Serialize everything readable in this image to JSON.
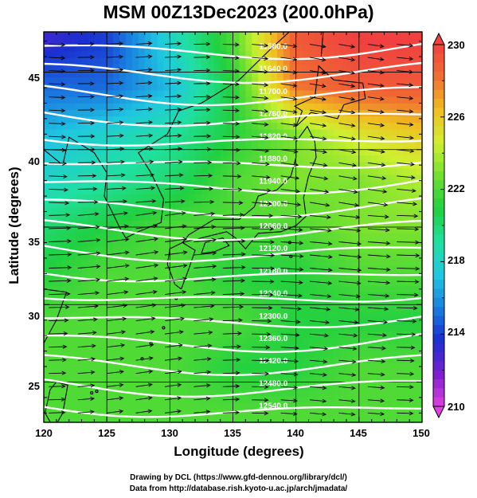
{
  "title": "MSM 00Z13Dec2023 (200.0hPa)",
  "axes": {
    "xlabel": "Longitude (degrees)",
    "ylabel": "Latitude  (degrees)",
    "xticks": [
      "120",
      "125",
      "130",
      "135",
      "140",
      "145",
      "150"
    ],
    "yticks": [
      "45",
      "40",
      "35",
      "30",
      "25"
    ]
  },
  "colorbar": {
    "ticks": [
      "230",
      "226",
      "222",
      "218",
      "214",
      "210"
    ],
    "min": 210,
    "max": 230,
    "colors": [
      "#e040e0",
      "#7a1fd0",
      "#1a2fd0",
      "#1a7fe0",
      "#20c8e0",
      "#20e0a0",
      "#20d040",
      "#70e030",
      "#d0f030",
      "#f0c020",
      "#f07030",
      "#f04040"
    ]
  },
  "contours": {
    "labels": [
      "11580.0",
      "11640.0",
      "11700.0",
      "11760.0",
      "11820.0",
      "11880.0",
      "11940.0",
      "12000.0",
      "12060.0",
      "12120.0",
      "12180.0",
      "12240.0",
      "12300.0",
      "12360.0",
      "12420.0",
      "12480.0",
      "12540.0"
    ]
  },
  "credits": {
    "line1": "Drawing by DCL (https://www.gfd-dennou.org/library/dcl/)",
    "line2": "Data from http://database.rish.kyoto-u.ac.jp/arch/jmadata/"
  },
  "chart_data": {
    "type": "heatmap",
    "title": "MSM 00Z13Dec2023 (200.0hPa)",
    "xlabel": "Longitude (degrees)",
    "ylabel": "Latitude  (degrees)",
    "xlim": [
      120,
      150
    ],
    "ylim": [
      22.4,
      47.6
    ],
    "x_ticks": [
      120,
      125,
      130,
      135,
      140,
      145,
      150
    ],
    "y_ticks": [
      25,
      30,
      35,
      40,
      45
    ],
    "colorbar_range": [
      210,
      230
    ],
    "colorbar_ticks": [
      210,
      214,
      218,
      222,
      226,
      230
    ],
    "field": "temperature (K) shaded, geopotential height contours (white), wind vectors",
    "temperature_grid": {
      "lons": [
        120,
        125,
        130,
        135,
        140,
        145,
        150
      ],
      "lats": [
        47,
        44,
        41,
        38,
        35,
        32,
        29,
        26,
        23
      ],
      "values": [
        [
          213,
          214,
          218,
          222,
          229,
          230,
          230
        ],
        [
          215,
          215,
          217,
          221,
          228,
          229,
          229
        ],
        [
          217,
          218,
          219,
          221,
          223,
          225,
          226
        ],
        [
          218,
          219,
          220,
          222,
          223,
          223,
          224
        ],
        [
          220,
          221,
          222,
          222,
          222,
          223,
          223
        ],
        [
          221,
          222,
          222,
          221,
          221,
          222,
          222
        ],
        [
          222,
          222,
          222,
          222,
          221,
          221,
          221
        ],
        [
          222,
          222,
          222,
          221,
          221,
          222,
          222
        ],
        [
          222,
          222,
          222,
          222,
          222,
          222,
          222
        ]
      ]
    },
    "contour_levels": [
      11580,
      11640,
      11700,
      11760,
      11820,
      11880,
      11940,
      12000,
      12060,
      12120,
      12180,
      12240,
      12300,
      12360,
      12420,
      12480,
      12540
    ]
  }
}
